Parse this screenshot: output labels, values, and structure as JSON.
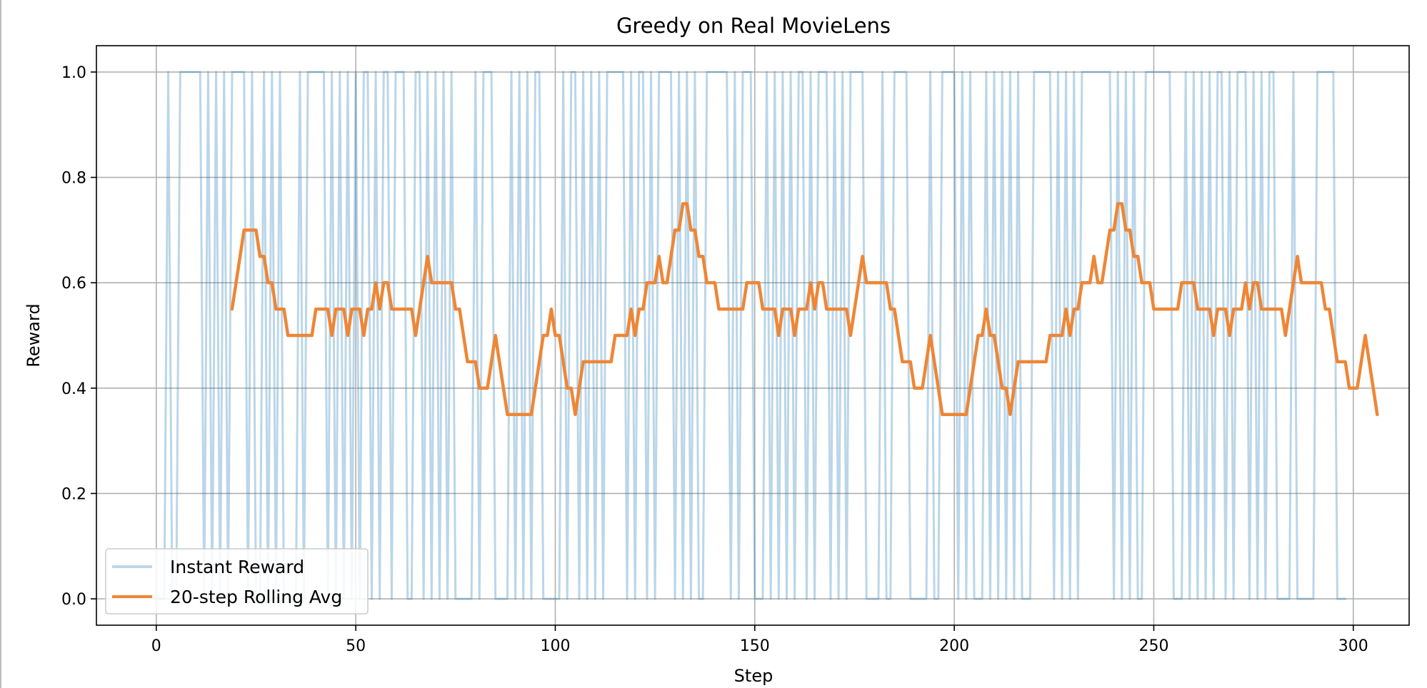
{
  "chart_data": {
    "type": "line",
    "title": "Greedy on Real MovieLens",
    "xlabel": "Step",
    "ylabel": "Reward",
    "xlim": [
      -15,
      314
    ],
    "ylim": [
      -0.05,
      1.05
    ],
    "xticks": [
      0,
      50,
      100,
      150,
      200,
      250,
      300
    ],
    "yticks": [
      0.0,
      0.2,
      0.4,
      0.6,
      0.8,
      1.0
    ],
    "xtick_labels": [
      "0",
      "50",
      "100",
      "150",
      "200",
      "250",
      "300"
    ],
    "ytick_labels": [
      "0.0",
      "0.2",
      "0.4",
      "0.6",
      "0.8",
      "1.0"
    ],
    "grid": true,
    "legend_position": "lower-left",
    "series": [
      {
        "name": "Instant Reward",
        "color": "#1f77b4",
        "opacity": 0.3,
        "x_start": 0,
        "values": [
          0,
          0,
          0,
          1,
          0,
          0,
          1,
          1,
          1,
          1,
          1,
          1,
          0,
          1,
          0,
          1,
          0,
          1,
          0,
          1,
          1,
          1,
          1,
          0,
          1,
          0,
          0,
          1,
          0,
          1,
          0,
          1,
          0,
          0,
          0,
          0,
          1,
          0,
          1,
          1,
          1,
          1,
          1,
          0,
          1,
          0,
          1,
          0,
          1,
          0,
          1,
          0,
          1,
          1,
          0,
          1,
          0,
          1,
          1,
          0,
          1,
          1,
          1,
          0,
          0,
          1,
          1,
          0,
          1,
          0,
          1,
          0,
          1,
          0,
          1,
          0,
          0,
          0,
          0,
          0,
          1,
          0,
          1,
          1,
          1,
          0,
          0,
          0,
          0,
          1,
          0,
          1,
          0,
          1,
          0,
          1,
          1,
          0,
          0,
          0,
          0,
          0,
          1,
          0,
          1,
          1,
          0,
          1,
          0,
          1,
          0,
          1,
          0,
          1,
          1,
          1,
          1,
          1,
          0,
          1,
          0,
          1,
          1,
          0,
          1,
          0,
          1,
          1,
          1,
          1,
          0,
          1,
          0,
          1,
          0,
          1,
          0,
          0,
          1,
          1,
          1,
          1,
          1,
          1,
          0,
          1,
          0,
          1,
          1,
          1,
          0,
          0,
          0,
          1,
          0,
          1,
          0,
          1,
          0,
          1,
          0,
          1,
          1,
          0,
          1,
          0,
          1,
          1,
          1,
          0,
          1,
          0,
          1,
          0,
          1,
          1,
          1,
          1,
          0,
          0,
          0,
          0,
          1,
          0,
          0,
          1,
          1,
          1,
          1,
          0,
          0,
          0,
          0,
          0,
          1,
          0,
          0,
          1,
          1,
          1,
          1,
          0,
          1,
          0,
          1,
          0,
          0,
          0,
          1,
          0,
          1,
          0,
          1,
          0,
          1,
          0,
          1,
          0,
          0,
          0,
          1,
          1,
          1,
          1,
          1,
          0,
          1,
          0,
          1,
          0,
          1,
          0,
          1,
          1,
          1,
          1,
          1,
          1,
          1,
          1,
          0,
          1,
          0,
          1,
          0,
          1,
          0,
          0,
          1,
          1,
          1,
          1,
          1,
          1,
          1,
          0,
          0,
          0,
          1,
          0,
          1,
          0,
          1,
          0,
          1,
          0,
          1,
          1,
          0,
          1,
          0,
          1,
          1,
          1,
          0,
          1,
          0,
          1,
          0,
          1,
          1,
          0,
          0,
          0,
          0,
          1,
          0,
          0,
          0,
          0,
          0,
          1,
          1,
          1,
          1,
          1,
          0,
          0,
          0
        ]
      },
      {
        "name": "20-step Rolling Avg",
        "color": "#ee8636",
        "opacity": 1,
        "x_start": 19,
        "values": [
          0.55,
          0.6,
          0.65,
          0.7,
          0.7,
          0.7,
          0.7,
          0.65,
          0.65,
          0.6,
          0.6,
          0.55,
          0.55,
          0.55,
          0.5,
          0.5,
          0.5,
          0.5,
          0.5,
          0.5,
          0.5,
          0.55,
          0.55,
          0.55,
          0.55,
          0.5,
          0.55,
          0.55,
          0.55,
          0.5,
          0.55,
          0.55,
          0.55,
          0.5,
          0.55,
          0.55,
          0.6,
          0.55,
          0.6,
          0.6,
          0.55,
          0.55,
          0.55,
          0.55,
          0.55,
          0.55,
          0.5,
          0.55,
          0.6,
          0.65,
          0.6,
          0.6,
          0.6,
          0.6,
          0.6,
          0.6,
          0.55,
          0.55,
          0.5,
          0.45,
          0.45,
          0.45,
          0.4,
          0.4,
          0.4,
          0.45,
          0.5,
          0.45,
          0.4,
          0.35,
          0.35,
          0.35,
          0.35,
          0.35,
          0.35,
          0.35,
          0.4,
          0.45,
          0.5,
          0.5,
          0.55,
          0.5,
          0.5,
          0.45,
          0.4,
          0.4,
          0.35,
          0.4,
          0.45,
          0.45,
          0.45,
          0.45,
          0.45,
          0.45,
          0.45,
          0.45,
          0.5,
          0.5,
          0.5,
          0.5,
          0.55,
          0.5,
          0.55,
          0.55,
          0.6,
          0.6,
          0.6,
          0.65,
          0.6,
          0.6,
          0.65,
          0.7,
          0.7,
          0.75,
          0.75,
          0.7,
          0.7,
          0.65,
          0.65,
          0.6,
          0.6,
          0.6,
          0.55,
          0.55,
          0.55,
          0.55,
          0.55,
          0.55,
          0.55,
          0.6,
          0.6,
          0.6,
          0.6,
          0.55,
          0.55,
          0.55,
          0.55,
          0.5,
          0.55,
          0.55,
          0.55,
          0.5,
          0.55,
          0.55,
          0.55,
          0.6,
          0.55,
          0.6,
          0.6,
          0.55,
          0.55,
          0.55,
          0.55,
          0.55,
          0.55,
          0.5,
          0.55,
          0.6,
          0.65,
          0.6,
          0.6,
          0.6,
          0.6,
          0.6,
          0.6,
          0.55,
          0.55,
          0.5,
          0.45,
          0.45,
          0.45,
          0.4,
          0.4,
          0.4,
          0.45,
          0.5,
          0.45,
          0.4,
          0.35,
          0.35,
          0.35,
          0.35,
          0.35,
          0.35,
          0.35,
          0.4,
          0.45,
          0.5,
          0.5,
          0.55,
          0.5,
          0.5,
          0.45,
          0.4,
          0.4,
          0.35,
          0.4,
          0.45,
          0.45,
          0.45,
          0.45,
          0.45,
          0.45,
          0.45,
          0.45,
          0.5,
          0.5,
          0.5,
          0.5,
          0.55,
          0.5,
          0.55,
          0.55,
          0.6,
          0.6,
          0.6,
          0.65,
          0.6,
          0.6,
          0.65,
          0.7,
          0.7,
          0.75,
          0.75,
          0.7,
          0.7,
          0.65,
          0.65,
          0.6,
          0.6,
          0.6,
          0.55,
          0.55,
          0.55,
          0.55,
          0.55,
          0.55,
          0.55,
          0.6,
          0.6,
          0.6,
          0.6,
          0.55,
          0.55,
          0.55,
          0.55,
          0.5,
          0.55,
          0.55,
          0.55,
          0.5,
          0.55,
          0.55,
          0.55,
          0.6,
          0.55,
          0.6,
          0.6,
          0.55,
          0.55,
          0.55,
          0.55,
          0.55,
          0.55,
          0.5,
          0.55,
          0.6,
          0.65,
          0.6,
          0.6,
          0.6,
          0.6,
          0.6,
          0.6,
          0.55,
          0.55,
          0.5,
          0.45,
          0.45,
          0.45,
          0.4,
          0.4,
          0.4,
          0.45,
          0.5,
          0.45,
          0.4,
          0.35
        ]
      }
    ]
  }
}
